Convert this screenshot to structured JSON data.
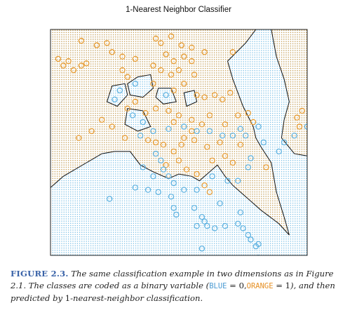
{
  "colors": {
    "blue": "#5AB0E0",
    "orange": "#E89A2E",
    "boundary": "#111111",
    "figure_label": "#3A63A8"
  },
  "chart_data": {
    "type": "scatter",
    "title": "1-Nearest Neighbor Classifier",
    "xlabel": "",
    "ylabel": "",
    "xlim": [
      0,
      1
    ],
    "ylim": [
      0,
      1
    ],
    "axes_ticks_shown": false,
    "background": "dotted grid colored by 1-NN predicted class",
    "decision_boundary": "1-nearest-neighbor",
    "series": [
      {
        "name": "ORANGE",
        "color": "#E89A2E",
        "marker": "open-circle",
        "points": [
          [
            0.12,
            0.95
          ],
          [
            0.18,
            0.93
          ],
          [
            0.22,
            0.94
          ],
          [
            0.41,
            0.96
          ],
          [
            0.43,
            0.94
          ],
          [
            0.47,
            0.97
          ],
          [
            0.51,
            0.93
          ],
          [
            0.55,
            0.92
          ],
          [
            0.03,
            0.87
          ],
          [
            0.05,
            0.84
          ],
          [
            0.07,
            0.86
          ],
          [
            0.09,
            0.82
          ],
          [
            0.12,
            0.84
          ],
          [
            0.14,
            0.85
          ],
          [
            0.24,
            0.9
          ],
          [
            0.28,
            0.88
          ],
          [
            0.33,
            0.87
          ],
          [
            0.45,
            0.89
          ],
          [
            0.48,
            0.86
          ],
          [
            0.52,
            0.88
          ],
          [
            0.55,
            0.86
          ],
          [
            0.6,
            0.9
          ],
          [
            0.71,
            0.9
          ],
          [
            0.28,
            0.82
          ],
          [
            0.3,
            0.79
          ],
          [
            0.4,
            0.84
          ],
          [
            0.43,
            0.82
          ],
          [
            0.47,
            0.8
          ],
          [
            0.5,
            0.82
          ],
          [
            0.56,
            0.8
          ],
          [
            0.4,
            0.76
          ],
          [
            0.48,
            0.73
          ],
          [
            0.52,
            0.76
          ],
          [
            0.57,
            0.71
          ],
          [
            0.6,
            0.7
          ],
          [
            0.64,
            0.71
          ],
          [
            0.67,
            0.69
          ],
          [
            0.7,
            0.72
          ],
          [
            0.3,
            0.65
          ],
          [
            0.33,
            0.68
          ],
          [
            0.37,
            0.63
          ],
          [
            0.41,
            0.65
          ],
          [
            0.46,
            0.64
          ],
          [
            0.48,
            0.59
          ],
          [
            0.5,
            0.62
          ],
          [
            0.55,
            0.6
          ],
          [
            0.59,
            0.58
          ],
          [
            0.62,
            0.62
          ],
          [
            0.68,
            0.58
          ],
          [
            0.73,
            0.62
          ],
          [
            0.77,
            0.63
          ],
          [
            0.79,
            0.59
          ],
          [
            0.96,
            0.61
          ],
          [
            0.98,
            0.64
          ],
          [
            0.97,
            0.57
          ],
          [
            0.2,
            0.6
          ],
          [
            0.24,
            0.57
          ],
          [
            0.16,
            0.55
          ],
          [
            0.11,
            0.52
          ],
          [
            0.29,
            0.52
          ],
          [
            0.38,
            0.51
          ],
          [
            0.41,
            0.5
          ],
          [
            0.44,
            0.49
          ],
          [
            0.48,
            0.46
          ],
          [
            0.51,
            0.49
          ],
          [
            0.56,
            0.51
          ],
          [
            0.61,
            0.48
          ],
          [
            0.66,
            0.5
          ],
          [
            0.68,
            0.44
          ],
          [
            0.71,
            0.41
          ],
          [
            0.74,
            0.49
          ],
          [
            0.63,
            0.42
          ],
          [
            0.57,
            0.36
          ],
          [
            0.53,
            0.38
          ],
          [
            0.5,
            0.42
          ],
          [
            0.45,
            0.4
          ],
          [
            0.6,
            0.31
          ],
          [
            0.62,
            0.28
          ],
          [
            0.84,
            0.39
          ],
          [
            0.52,
            0.52
          ],
          [
            0.55,
            0.55
          ]
        ]
      },
      {
        "name": "BLUE",
        "color": "#5AB0E0",
        "marker": "open-circle",
        "points": [
          [
            0.33,
            0.76
          ],
          [
            0.27,
            0.73
          ],
          [
            0.25,
            0.69
          ],
          [
            0.32,
            0.62
          ],
          [
            0.36,
            0.59
          ],
          [
            0.4,
            0.55
          ],
          [
            0.35,
            0.53
          ],
          [
            0.46,
            0.56
          ],
          [
            0.52,
            0.57
          ],
          [
            0.57,
            0.55
          ],
          [
            0.62,
            0.55
          ],
          [
            0.67,
            0.53
          ],
          [
            0.71,
            0.53
          ],
          [
            0.76,
            0.53
          ],
          [
            0.74,
            0.56
          ],
          [
            0.81,
            0.57
          ],
          [
            0.83,
            0.5
          ],
          [
            0.89,
            0.46
          ],
          [
            0.91,
            0.5
          ],
          [
            0.95,
            0.53
          ],
          [
            1.0,
            0.57
          ],
          [
            0.78,
            0.43
          ],
          [
            0.77,
            0.39
          ],
          [
            0.41,
            0.45
          ],
          [
            0.43,
            0.42
          ],
          [
            0.44,
            0.38
          ],
          [
            0.46,
            0.35
          ],
          [
            0.48,
            0.32
          ],
          [
            0.4,
            0.35
          ],
          [
            0.36,
            0.39
          ],
          [
            0.33,
            0.3
          ],
          [
            0.38,
            0.29
          ],
          [
            0.42,
            0.28
          ],
          [
            0.47,
            0.26
          ],
          [
            0.52,
            0.29
          ],
          [
            0.57,
            0.29
          ],
          [
            0.63,
            0.35
          ],
          [
            0.69,
            0.33
          ],
          [
            0.73,
            0.33
          ],
          [
            0.56,
            0.21
          ],
          [
            0.59,
            0.17
          ],
          [
            0.6,
            0.15
          ],
          [
            0.57,
            0.13
          ],
          [
            0.61,
            0.13
          ],
          [
            0.64,
            0.12
          ],
          [
            0.68,
            0.13
          ],
          [
            0.74,
            0.19
          ],
          [
            0.73,
            0.14
          ],
          [
            0.75,
            0.12
          ],
          [
            0.77,
            0.09
          ],
          [
            0.78,
            0.07
          ],
          [
            0.8,
            0.04
          ],
          [
            0.81,
            0.05
          ],
          [
            0.59,
            0.03
          ],
          [
            0.81,
            -0.01
          ],
          [
            0.48,
            0.21
          ],
          [
            0.49,
            0.18
          ],
          [
            0.23,
            0.25
          ],
          [
            0.66,
            0.23
          ],
          [
            0.45,
            0.71
          ]
        ]
      }
    ]
  },
  "caption": {
    "figure_label": "FIGURE 2.3.",
    "text_1": "The same classification example in two dimensions as in Figure 2.1. The classes are coded as a binary variable (",
    "blue_word": "BLUE",
    "eq_blue": " = 0,",
    "orange_word": "ORANGE",
    "eq_orange": " = 1",
    "text_2": "), and then predicted by ",
    "one": "1",
    "text_3": "-nearest-neighbor classification."
  }
}
